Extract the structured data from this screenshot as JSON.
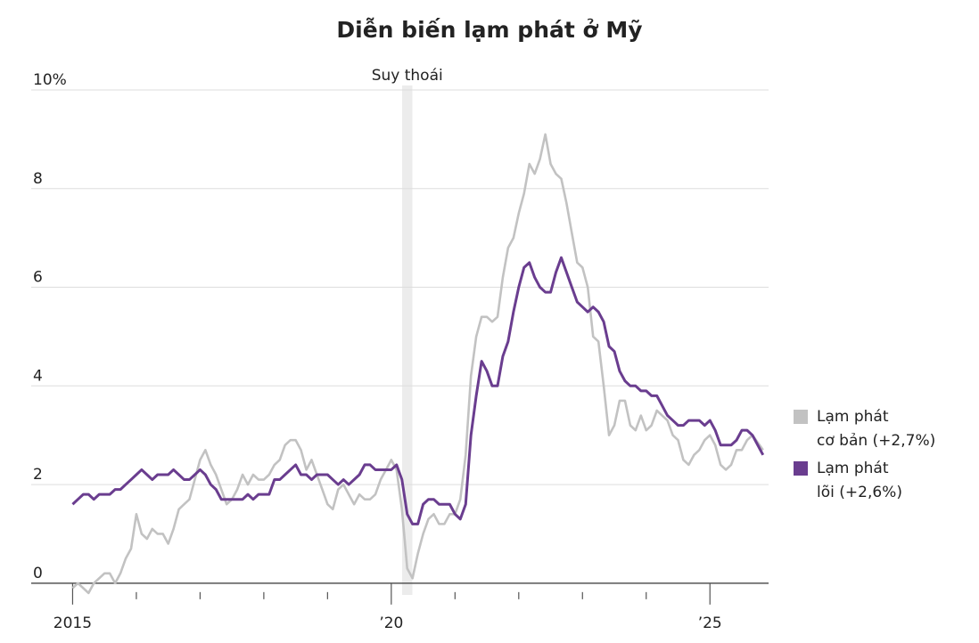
{
  "chart_data": {
    "type": "line",
    "title": "Diễn biến lạm phát ở Mỹ",
    "recession": {
      "label": "Suy thoái",
      "start": 2020.17,
      "end": 2020.33
    },
    "xlim": [
      2014.7,
      2025.92
    ],
    "xticks": [
      2015,
      {
        "value": 2020,
        "label": "’20"
      },
      {
        "value": 2025,
        "label": "’25"
      }
    ],
    "xminorticks": [
      2016,
      2017,
      2018,
      2019,
      2021,
      2022,
      2023,
      2024
    ],
    "ylim": [
      -0.4,
      10
    ],
    "yticks": [
      0,
      2,
      4,
      6,
      8,
      {
        "value": 10,
        "label": "10%"
      }
    ],
    "grid": true,
    "x": [
      2015,
      2015.083,
      2015.167,
      2015.25,
      2015.333,
      2015.417,
      2015.5,
      2015.583,
      2015.667,
      2015.75,
      2015.833,
      2015.917,
      2016,
      2016.083,
      2016.167,
      2016.25,
      2016.333,
      2016.417,
      2016.5,
      2016.583,
      2016.667,
      2016.75,
      2016.833,
      2016.917,
      2017,
      2017.083,
      2017.167,
      2017.25,
      2017.333,
      2017.417,
      2017.5,
      2017.583,
      2017.667,
      2017.75,
      2017.833,
      2017.917,
      2018,
      2018.083,
      2018.167,
      2018.25,
      2018.333,
      2018.417,
      2018.5,
      2018.583,
      2018.667,
      2018.75,
      2018.833,
      2018.917,
      2019,
      2019.083,
      2019.167,
      2019.25,
      2019.333,
      2019.417,
      2019.5,
      2019.583,
      2019.667,
      2019.75,
      2019.833,
      2019.917,
      2020,
      2020.083,
      2020.167,
      2020.25,
      2020.333,
      2020.417,
      2020.5,
      2020.583,
      2020.667,
      2020.75,
      2020.833,
      2020.917,
      2021,
      2021.083,
      2021.167,
      2021.25,
      2021.333,
      2021.417,
      2021.5,
      2021.583,
      2021.667,
      2021.75,
      2021.833,
      2021.917,
      2022,
      2022.083,
      2022.167,
      2022.25,
      2022.333,
      2022.417,
      2022.5,
      2022.583,
      2022.667,
      2022.75,
      2022.833,
      2022.917,
      2023,
      2023.083,
      2023.167,
      2023.25,
      2023.333,
      2023.417,
      2023.5,
      2023.583,
      2023.667,
      2023.75,
      2023.833,
      2023.917,
      2024,
      2024.083,
      2024.167,
      2024.25,
      2024.333,
      2024.417,
      2024.5,
      2024.583,
      2024.667,
      2024.75,
      2024.833,
      2024.917,
      2025,
      2025.083,
      2025.167,
      2025.25,
      2025.333,
      2025.417,
      2025.5,
      2025.583,
      2025.667,
      2025.833
    ],
    "series": [
      {
        "name": "Lạm phát\ncơ bản (+2,7%)",
        "color": "#c2c2c2",
        "values": [
          -0.1,
          0.0,
          -0.1,
          -0.2,
          0.0,
          0.1,
          0.2,
          0.2,
          0.0,
          0.2,
          0.5,
          0.7,
          1.4,
          1.0,
          0.9,
          1.1,
          1.0,
          1.0,
          0.8,
          1.1,
          1.5,
          1.6,
          1.7,
          2.1,
          2.5,
          2.7,
          2.4,
          2.2,
          1.9,
          1.6,
          1.7,
          1.9,
          2.2,
          2.0,
          2.2,
          2.1,
          2.1,
          2.2,
          2.4,
          2.5,
          2.8,
          2.9,
          2.9,
          2.7,
          2.3,
          2.5,
          2.2,
          1.9,
          1.6,
          1.5,
          1.9,
          2.0,
          1.8,
          1.6,
          1.8,
          1.7,
          1.7,
          1.8,
          2.1,
          2.3,
          2.5,
          2.3,
          1.5,
          0.3,
          0.1,
          0.6,
          1.0,
          1.3,
          1.4,
          1.2,
          1.2,
          1.4,
          1.4,
          1.7,
          2.6,
          4.2,
          5.0,
          5.4,
          5.4,
          5.3,
          5.4,
          6.2,
          6.8,
          7.0,
          7.5,
          7.9,
          8.5,
          8.3,
          8.6,
          9.1,
          8.5,
          8.3,
          8.2,
          7.7,
          7.1,
          6.5,
          6.4,
          6.0,
          5.0,
          4.9,
          4.0,
          3.0,
          3.2,
          3.7,
          3.7,
          3.2,
          3.1,
          3.4,
          3.1,
          3.2,
          3.5,
          3.4,
          3.3,
          3.0,
          2.9,
          2.5,
          2.4,
          2.6,
          2.7,
          2.9,
          3.0,
          2.8,
          2.4,
          2.3,
          2.4,
          2.7,
          2.7,
          2.9,
          3.0,
          2.7
        ]
      },
      {
        "name": "Lạm phát\nlõi (+2,6%)",
        "color": "#6a3d8f",
        "values": [
          1.6,
          1.7,
          1.8,
          1.8,
          1.7,
          1.8,
          1.8,
          1.8,
          1.9,
          1.9,
          2.0,
          2.1,
          2.2,
          2.3,
          2.2,
          2.1,
          2.2,
          2.2,
          2.2,
          2.3,
          2.2,
          2.1,
          2.1,
          2.2,
          2.3,
          2.2,
          2.0,
          1.9,
          1.7,
          1.7,
          1.7,
          1.7,
          1.7,
          1.8,
          1.7,
          1.8,
          1.8,
          1.8,
          2.1,
          2.1,
          2.2,
          2.3,
          2.4,
          2.2,
          2.2,
          2.1,
          2.2,
          2.2,
          2.2,
          2.1,
          2.0,
          2.1,
          2.0,
          2.1,
          2.2,
          2.4,
          2.4,
          2.3,
          2.3,
          2.3,
          2.3,
          2.4,
          2.1,
          1.4,
          1.2,
          1.2,
          1.6,
          1.7,
          1.7,
          1.6,
          1.6,
          1.6,
          1.4,
          1.3,
          1.6,
          3.0,
          3.8,
          4.5,
          4.3,
          4.0,
          4.0,
          4.6,
          4.9,
          5.5,
          6.0,
          6.4,
          6.5,
          6.2,
          6.0,
          5.9,
          5.9,
          6.3,
          6.6,
          6.3,
          6.0,
          5.7,
          5.6,
          5.5,
          5.6,
          5.5,
          5.3,
          4.8,
          4.7,
          4.3,
          4.1,
          4.0,
          4.0,
          3.9,
          3.9,
          3.8,
          3.8,
          3.6,
          3.4,
          3.3,
          3.2,
          3.2,
          3.3,
          3.3,
          3.3,
          3.2,
          3.3,
          3.1,
          2.8,
          2.8,
          2.8,
          2.9,
          3.1,
          3.1,
          3.0,
          2.6
        ]
      }
    ]
  }
}
